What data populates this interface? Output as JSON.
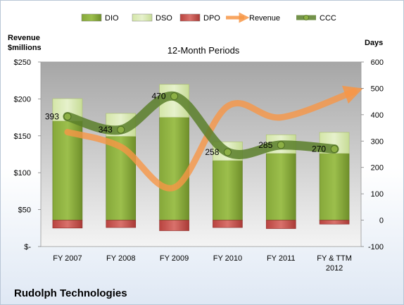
{
  "chart_data": {
    "type": "bar",
    "title": "",
    "subtitle": "12-Month Periods",
    "company": "Rudolph Technologies",
    "categories": [
      [
        "FY 2007"
      ],
      [
        "FY 2008"
      ],
      [
        "FY 2009"
      ],
      [
        "FY 2010"
      ],
      [
        "FY 2011"
      ],
      [
        "FY & TTM",
        "2012"
      ]
    ],
    "left_axis": {
      "label_line1": "Revenue",
      "label_line2": "$millions",
      "ticks": [
        0,
        50,
        100,
        150,
        200,
        250
      ],
      "tick_labels": [
        "$-",
        "$50",
        "$100",
        "$150",
        "$200",
        "$250"
      ],
      "range": [
        0,
        250
      ]
    },
    "right_axis": {
      "label": "Days",
      "ticks": [
        -100,
        0,
        100,
        200,
        300,
        400,
        500,
        600
      ],
      "tick_labels": [
        "-100",
        "0",
        "100",
        "200",
        "300",
        "400",
        "500",
        "600"
      ],
      "range": [
        -100,
        600
      ]
    },
    "series": [
      {
        "name": "DIO",
        "kind": "stacked-bar",
        "axis": "right",
        "color": "#7a9a30",
        "values": [
          376,
          318,
          390,
          226,
          253,
          253
        ]
      },
      {
        "name": "DSO",
        "kind": "stacked-bar",
        "axis": "right",
        "color": "#d8e8b0",
        "values": [
          85,
          87,
          125,
          71,
          71,
          80
        ]
      },
      {
        "name": "DPO",
        "kind": "negative-bar",
        "axis": "right",
        "color": "#c0504d",
        "values": [
          -30,
          -28,
          -40,
          -28,
          -32,
          -15
        ]
      },
      {
        "name": "Revenue",
        "kind": "line",
        "axis": "left",
        "color": "#f79646",
        "values": [
          155,
          135,
          80,
          190,
          175,
          210
        ]
      },
      {
        "name": "CCC",
        "kind": "line",
        "axis": "right",
        "color": "#5a7f2a",
        "values": [
          393,
          343,
          470,
          258,
          285,
          270
        ],
        "labels": [
          "393",
          "343",
          "470",
          "258",
          "285",
          "270"
        ]
      }
    ],
    "grid": false,
    "legend_position": "top"
  }
}
